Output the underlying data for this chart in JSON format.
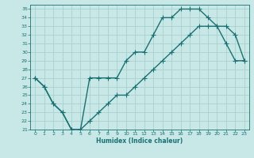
{
  "xlabel": "Humidex (Indice chaleur)",
  "background_color": "#c8e8e8",
  "grid_color": "#aad0d0",
  "line_color": "#1a7070",
  "xlim": [
    -0.5,
    23.5
  ],
  "ylim": [
    21,
    35.5
  ],
  "xticks": [
    0,
    1,
    2,
    3,
    4,
    5,
    6,
    7,
    8,
    9,
    10,
    11,
    12,
    13,
    14,
    15,
    16,
    17,
    18,
    19,
    20,
    21,
    22,
    23
  ],
  "yticks": [
    21,
    22,
    23,
    24,
    25,
    26,
    27,
    28,
    29,
    30,
    31,
    32,
    33,
    34,
    35
  ],
  "curve1_x": [
    0,
    1,
    2,
    3,
    4,
    5,
    6,
    7,
    8,
    9,
    10,
    11,
    12,
    13,
    14,
    15,
    16,
    17,
    18,
    19,
    20,
    21,
    22,
    23
  ],
  "curve1_y": [
    27,
    26,
    24,
    23,
    21,
    21,
    27,
    27,
    27,
    27,
    29,
    30,
    30,
    32,
    34,
    34,
    35,
    35,
    35,
    34,
    33,
    31,
    29,
    29
  ],
  "curve2_x": [
    0,
    1,
    2,
    3,
    4,
    5,
    6,
    7,
    8,
    9,
    10,
    11,
    12,
    13,
    14,
    15,
    16,
    17,
    18,
    19,
    20,
    21,
    22,
    23
  ],
  "curve2_y": [
    27,
    26,
    24,
    23,
    21,
    21,
    22,
    23,
    24,
    25,
    25,
    26,
    27,
    28,
    29,
    30,
    31,
    32,
    33,
    33,
    33,
    33,
    32,
    29
  ]
}
